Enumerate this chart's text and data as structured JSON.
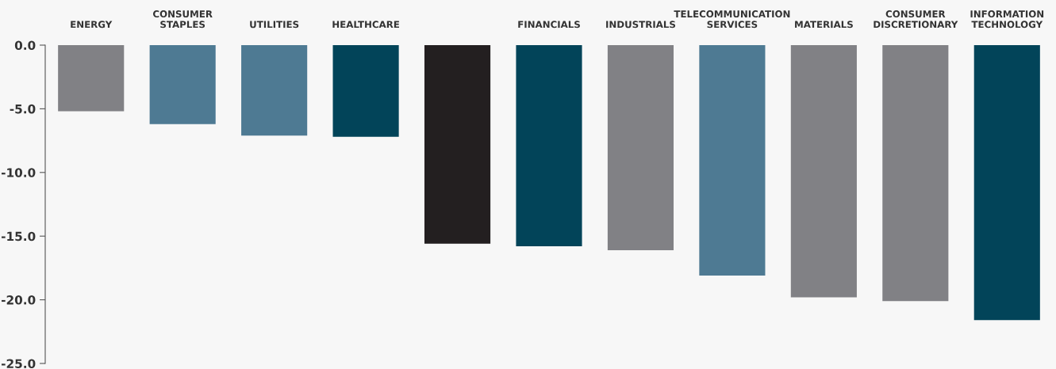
{
  "chart_data": {
    "type": "bar",
    "categories": [
      "ENERGY",
      "CONSUMER\nSTAPLES",
      "UTILITIES",
      "HEALTHCARE",
      null,
      "FINANCIALS",
      "INDUSTRIALS",
      "TELECOMMUNICATION\nSERVICES",
      "MATERIALS",
      "CONSUMER\nDISCRETIONARY",
      "INFORMATION\nTECHNOLOGY"
    ],
    "values": [
      -5.2,
      -6.2,
      -7.1,
      -7.2,
      -15.6,
      -15.8,
      -16.1,
      -18.1,
      -19.8,
      -20.1,
      -21.6
    ],
    "colors": [
      "#818185",
      "#4e7a93",
      "#4e7a93",
      "#024459",
      "#231f20",
      "#024459",
      "#818185",
      "#4e7a93",
      "#818185",
      "#818185",
      "#024459"
    ],
    "ylim": [
      -25,
      0
    ],
    "yticks": [
      {
        "value": 0,
        "label": "0.0"
      },
      {
        "value": -5,
        "label": "-5.0"
      },
      {
        "value": -10,
        "label": "-10.0"
      },
      {
        "value": -15,
        "label": "-15.0"
      },
      {
        "value": -20,
        "label": "-20.0"
      },
      {
        "value": -25,
        "label": "-25.0"
      }
    ],
    "grid": false,
    "legend": false
  }
}
